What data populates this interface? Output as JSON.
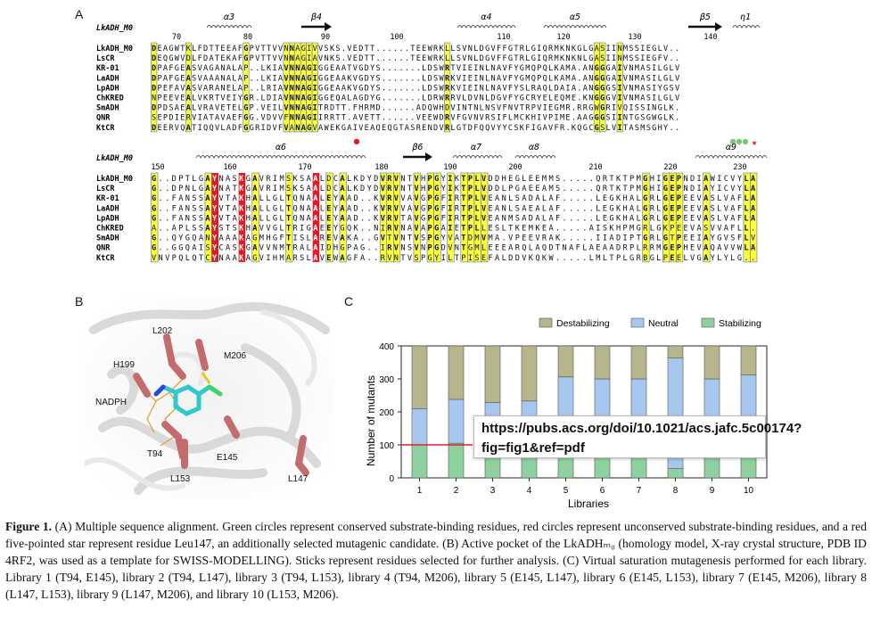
{
  "panels": {
    "a": "A",
    "b": "B",
    "c": "C"
  },
  "alignment": {
    "ref_label": "LkADH_M0",
    "top": {
      "ss": [
        {
          "label": "α3",
          "kind": "helix"
        },
        {
          "label": "β4",
          "kind": "strand"
        },
        {
          "label": "α4",
          "kind": "helix"
        },
        {
          "label": "α5",
          "kind": "helix"
        },
        {
          "label": "β5",
          "kind": "strand"
        },
        {
          "label": "η1",
          "kind": "helix"
        }
      ],
      "numbers": [
        "70",
        "80",
        "90",
        "100",
        "110",
        "120",
        "130",
        "140"
      ],
      "rows": [
        {
          "name": "LkADH_M0",
          "seq": "DEAGWTKLFDTTEEAFGPVTTVVNNAGIVVSKS.VEDTT......TEEWRKLLSVNLDGVFFGTRLGIQRMKNKGLGASIINMSSIEGLV"
        },
        {
          "name": "LsCR",
          "seq": "DEQGWVDLFDATEKAFGPVTTVVNNAGIAVNKS.VEDTT......TEEWRKLLSVNLDGVFFGTRLGIQRMKNKNLGASIINMSSIEGFV"
        },
        {
          "name": "KR-01",
          "seq": "DPAFGEASVAGANALAP..LKIAVNNAGIGGEAATVGDYS.......LDSWRTVIEINLNAVFYGMQPQLKAMA.ANGGGAIVNMASILGLV"
        },
        {
          "name": "LaADH",
          "seq": "DPAFGEASVAAANALAP..LKIAVNNAGIGGEAAKVGDYS.......LDSWRKVIEINLNAVFYGMQPQLKAMA.ANGGGAIVNMASILGLV"
        },
        {
          "name": "LpADH",
          "seq": "DPEFAVASVARANELAP..LRIAVNNAGIGGEAAKVGDYS.......LDSWRKVIEINLNAVFYSLRAQLDAIA.ANGGGSIVNMASIYGSV"
        },
        {
          "name": "ChKRED",
          "seq": "NPEEVEALVKRTVEIYGR.LDIAVNNAGIGGEQALAGDYG.......LDRWRRVLDVNLDGVFYGCRYELEQME.KNGGGVIVNMASILGLV"
        },
        {
          "name": "SmADH",
          "seq": "DPDSAEALVRAVETELGP.VEILVNNAGITRDTT.FHRMD......ADQWHDVINTNLNSVFNVTRPVIEGMR.RRGWGRIVQISSINGLK"
        },
        {
          "name": "QNR",
          "seq": "SEPDIERVIATAVAEFGG.VDVVFNNAGIIRRTT.AVETT......VEEWDRVFGVNVRSIFLMCKHIVPIME.AAGGGSIINTGSGWGLK"
        },
        {
          "name": "KtCR",
          "seq": "DEERVQATIQQVLADFGGRIDVFVANAGVAWEKGAIVEAQEQGTASRENDVRLGTDFQQVYYCSKFIGAVFR.KQGCGSLVITASMSGHY"
        }
      ]
    },
    "bottom": {
      "ss": [
        {
          "label": "α6",
          "kind": "helix"
        },
        {
          "label": "β6",
          "kind": "strand"
        },
        {
          "label": "α7",
          "kind": "helix"
        },
        {
          "label": "α8",
          "kind": "helix"
        },
        {
          "label": "α9",
          "kind": "helix"
        }
      ],
      "numbers": [
        "150",
        "160",
        "170",
        "180",
        "190",
        "200",
        "210",
        "220",
        "230"
      ],
      "rows": [
        {
          "name": "LkADH_M0",
          "seq": "G..DPTLGAYNASKGAVRIMSKSAALDCALKDYDVRVNTVHPGYIKTPLVDDHEGLEEMMS.....QRTKTPMGHIGEPNDIAWICVYLA"
        },
        {
          "name": "LsCR",
          "seq": "G..DPNLGAYNATKGAVRIMSKSAALDCALKDYDVRVNTVHPGYIKTPLVDDLPGAEEAMS.....QRTKTPMGHIGEPNDIAYICVYLA"
        },
        {
          "name": "KR-01",
          "seq": "G..FANSSAYVTAKHALLGLTQNAALEYAAD..KVRVVAVGPGFIRTPLVEANLSADALAF.....LEGKHALGRLGEPEEVASLVAFLA"
        },
        {
          "name": "LaADH",
          "seq": "G..FANSSAYVTAKHALLGLTQNAALEYAAD..KVRVVAVGPGFIRTPLVEANLSAEALAF.....LEGKHALGRLGEPEEVASLVAFLA"
        },
        {
          "name": "LpADH",
          "seq": "G..FANSSAYVTAKHALLGLTQNAALEYAAD..KVRVTAVGPGFIRTPLVEANMSADALAF.....LEGKHALGRLGEPEEVASLVAFLA"
        },
        {
          "name": "ChKRED",
          "seq": "A..APLSSAYSTSKHAVVGLTRIGAEEYGQK..NIRVNAVAPGAIETPLLESLTKEMKEA.....AISKHPMGRLGKPEEVASVVAFLL"
        },
        {
          "name": "SmADH",
          "seq": "G..QYGQANYAAAKAGMHGFTISLAREVAKA..GVTVNTVSPGYVATDMVMA.VPEEVRAK.....IIADIPTGRLGTPEEIAYGVSFLV"
        },
        {
          "name": "QNR",
          "seq": "G..GGQAISYCASKGAVVNMTRALAIDHGPAG..IRVNSVNPGDVNTGMLEEEARQLAQDTNAFLAEAADRPLRRMGEPHEVAQAVVWLA"
        },
        {
          "name": "KtCR",
          "seq": "VNVPQLQTCYNAAKAGVIHMARSLAVEWAGFA..RVNTVSPGYILTPISEFALDDVKQKW.....LMLTPLGRBGLPEELVGAYLYLG"
        }
      ]
    }
  },
  "structure": {
    "labels": [
      "L202",
      "M206",
      "H199",
      "NADPH",
      "T94",
      "E145",
      "L153",
      "L147"
    ]
  },
  "chart_data": {
    "type": "bar",
    "stacked": true,
    "categories": [
      "1",
      "2",
      "3",
      "4",
      "5",
      "6",
      "7",
      "8",
      "9",
      "10"
    ],
    "series": [
      {
        "name": "Stabilizing",
        "color": "#8fd19e",
        "values": [
          100,
          105,
          102,
          100,
          100,
          100,
          100,
          28,
          100,
          100
        ]
      },
      {
        "name": "Neutral",
        "color": "#a7c7ee",
        "values": [
          110,
          133,
          126,
          133,
          206,
          200,
          200,
          335,
          200,
          212
        ]
      },
      {
        "name": "Destabilizing",
        "color": "#b7b58c",
        "values": [
          190,
          162,
          172,
          167,
          94,
          100,
          100,
          37,
          100,
          88
        ]
      }
    ],
    "legend_order": [
      "Destabilizing",
      "Neutral",
      "Stabilizing"
    ],
    "xlabel": "Libraries",
    "ylabel": "Number of mutants",
    "ylim": [
      0,
      400
    ],
    "yticks": [
      "0",
      "100",
      "200",
      "300",
      "400"
    ],
    "reference_line": {
      "value": 100,
      "color": "#e0202a"
    },
    "grid": false,
    "legend_position": "top"
  },
  "overlay": {
    "url_text": "https://pubs.acs.org/doi/10.1021/acs.jafc.5c00174?fig=fig1&ref=pdf"
  },
  "caption": {
    "fig_label": "Figure 1.",
    "text": "(A) Multiple sequence alignment. Green circles represent conserved substrate-binding residues, red circles represent unconserved substrate-binding residues, and a red five-pointed star represent residue Leu147, an additionally selected mutagenic candidate. (B) Active pocket of the LkADHₘ₀ (homology model, X-ray crystal structure, PDB ID 4RF2, was used as a template for SWISS-MODELLING). Sticks represent residues selected for further analysis. (C) Virtual saturation mutagenesis performed for each library. Library 1 (T94, E145), library 2 (T94, L147), library 3 (T94, L153), library 4 (T94, M206), library 5 (E145, L147), library 6 (E145, L153), library 7 (E145, M206), library 8 (L147, L153), library 9 (L147, M206), and library 10 (L153, M206)."
  },
  "colors": {
    "conserved_bg": "#e01b24",
    "similar_bg": "#ffff33",
    "green_dot": "#78c77a",
    "red_dot": "#e01b24"
  }
}
